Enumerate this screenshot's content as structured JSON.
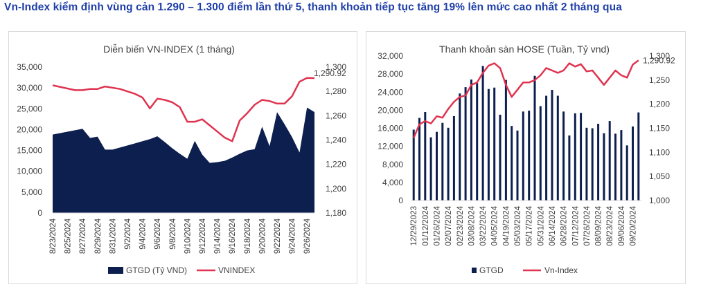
{
  "headline": "Vn-Index kiểm định vùng cản 1.290 – 1.300 điểm lần thứ 5, thanh khoản tiếp tục tăng 19% lên mức cao nhất 2 tháng qua",
  "colors": {
    "headline": "#1f3fa8",
    "area": "#0d1f4f",
    "line": "#e0334f",
    "bars": "#0d1f4f",
    "axis_text": "#404040",
    "grid": "#d9d9d9"
  },
  "chart_data": [
    {
      "type": "area",
      "title": "Diễn biến VN-INDEX (1 tháng)",
      "left_axis": {
        "ticks": [
          "0",
          "5,000",
          "10,000",
          "15,000",
          "20,000",
          "25,000",
          "30,000",
          "35,000"
        ],
        "ylim": [
          0,
          35000
        ]
      },
      "right_axis": {
        "ticks": [
          "1,180",
          "1,200",
          "1,220",
          "1,240",
          "1,260",
          "1,280",
          "1,300"
        ],
        "ylim": [
          1180,
          1300
        ]
      },
      "x_ticks": [
        "8/23/2024",
        "8/25/2024",
        "8/27/2024",
        "8/29/2024",
        "8/31/2024",
        "9/2/2024",
        "9/4/2024",
        "9/6/2024",
        "9/8/2024",
        "9/10/2024",
        "9/12/2024",
        "9/14/2024",
        "9/16/2024",
        "9/18/2024",
        "9/20/2024",
        "9/22/2024",
        "9/24/2024",
        "9/26/2024"
      ],
      "x_range": [
        0,
        35
      ],
      "gtgd": {
        "name": "GTGD (Tỷ VND)",
        "x": [
          0,
          4,
          5,
          6,
          7,
          8,
          9,
          10,
          11,
          12,
          13,
          14,
          15,
          16,
          17,
          18,
          19,
          20,
          21,
          22,
          23,
          24,
          25,
          26,
          27,
          28,
          29,
          30,
          31,
          32,
          33,
          34,
          35
        ],
        "values": [
          18800,
          20200,
          18000,
          18300,
          15200,
          15200,
          15700,
          16200,
          16700,
          17200,
          17700,
          18400,
          17000,
          15500,
          14200,
          13000,
          17300,
          14000,
          12000,
          12200,
          12500,
          13300,
          14200,
          15000,
          15300,
          20700,
          16000,
          24200,
          21300,
          18200,
          14500,
          25300,
          24200
        ]
      },
      "vnindex": {
        "name": "VNINDEX",
        "x": [
          0,
          3,
          4,
          5,
          6,
          7,
          9,
          10,
          11,
          12,
          13,
          14,
          15,
          16,
          17,
          18,
          19,
          20,
          21,
          22,
          23,
          24,
          25,
          26,
          27,
          28,
          29,
          30,
          31,
          32,
          33,
          34,
          35
        ],
        "values": [
          1285,
          1281,
          1281,
          1282,
          1282,
          1284,
          1282,
          1280,
          1278,
          1275,
          1266,
          1274,
          1273,
          1271,
          1267,
          1255,
          1255,
          1257,
          1252,
          1247,
          1242,
          1239,
          1256,
          1262,
          1269,
          1273,
          1272,
          1270,
          1270,
          1276,
          1288,
          1291,
          1290.92
        ]
      },
      "last_label": "1,290.92"
    },
    {
      "type": "bar",
      "title": "Thanh khoản sàn HOSE (Tuần, Tỷ vnd)",
      "left_axis": {
        "ticks": [
          "0",
          "4,000",
          "8,000",
          "12,000",
          "16,000",
          "20,000",
          "24,000",
          "28,000",
          "32,000"
        ],
        "ylim": [
          0,
          32000
        ]
      },
      "right_axis": {
        "ticks": [
          "1,000",
          "1,050",
          "1,100",
          "1,150",
          "1,200",
          "1,250",
          "1,300"
        ],
        "ylim": [
          1000,
          1300
        ]
      },
      "x_ticks": [
        "12/29/2023",
        "01/12/2024",
        "01/26/2024",
        "02/07/2024",
        "02/23/2024",
        "03/08/2024",
        "03/22/2024",
        "04/05/2024",
        "04/19/2024",
        "05/03/2024",
        "05/17/2024",
        "05/31/2024",
        "06/14/2024",
        "06/28/2024",
        "07/12/2024",
        "07/26/2024",
        "08/09/2024",
        "08/23/2024",
        "09/06/2024",
        "09/20/2024"
      ],
      "gtgd": {
        "name": "GTGD",
        "values": [
          15700,
          18300,
          19600,
          14000,
          15200,
          17200,
          16100,
          18700,
          23700,
          25100,
          26800,
          26000,
          29800,
          24700,
          25000,
          19000,
          26700,
          16500,
          15500,
          19700,
          19900,
          27600,
          20900,
          23200,
          24500,
          23200,
          19700,
          14400,
          19300,
          19400,
          16100,
          16000,
          17000,
          14900,
          17600,
          14800,
          15600,
          12200,
          16400,
          19500
        ]
      },
      "vnindex": {
        "name": "Vn-Index",
        "values": [
          1130,
          1158,
          1165,
          1160,
          1175,
          1172,
          1190,
          1205,
          1215,
          1218,
          1240,
          1245,
          1265,
          1280,
          1285,
          1275,
          1240,
          1215,
          1230,
          1245,
          1245,
          1250,
          1260,
          1275,
          1270,
          1265,
          1270,
          1285,
          1278,
          1283,
          1268,
          1270,
          1255,
          1240,
          1255,
          1270,
          1260,
          1255,
          1282,
          1290.92
        ]
      },
      "last_label": "1,290.92"
    }
  ]
}
